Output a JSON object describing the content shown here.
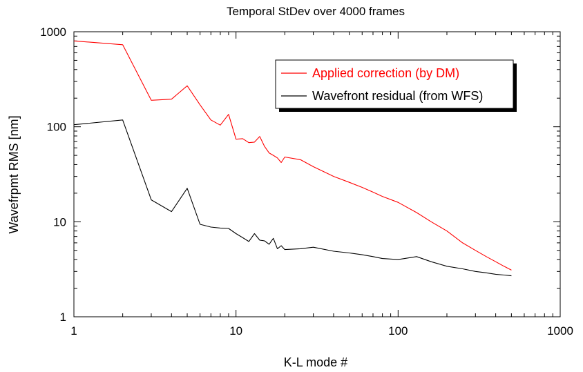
{
  "chart_data": {
    "type": "line",
    "title": "Temporal StDev over 4000 frames",
    "xlabel": "K-L mode #",
    "ylabel": "Wavefrpmt RMS [nm]",
    "xscale": "log",
    "yscale": "log",
    "xlim": [
      1,
      1000
    ],
    "ylim": [
      1,
      1000
    ],
    "xticks": [
      1,
      10,
      100,
      1000
    ],
    "xtick_labels": [
      "1",
      "10",
      "100",
      "1000"
    ],
    "yticks": [
      1,
      10,
      100,
      1000
    ],
    "ytick_labels": [
      "1",
      "10",
      "100",
      "1000"
    ],
    "grid": false,
    "legend_position": "top-right",
    "series": [
      {
        "name": "Applied correction (by DM)",
        "color": "#ff0000",
        "x": [
          1,
          2,
          3,
          4,
          5,
          6,
          7,
          8,
          9,
          10,
          11,
          12,
          13,
          14,
          15,
          16,
          17,
          18,
          19,
          20,
          25,
          30,
          40,
          50,
          60,
          70,
          80,
          100,
          130,
          160,
          200,
          250,
          300,
          350,
          400,
          450,
          500
        ],
        "y": [
          800,
          730,
          190,
          195,
          270,
          170,
          118,
          104,
          135,
          74,
          75,
          68,
          69,
          79,
          62,
          53,
          50,
          47,
          42,
          48,
          45,
          38,
          30,
          26,
          23,
          20.5,
          18.5,
          16,
          12.5,
          10,
          8,
          6,
          5,
          4.3,
          3.8,
          3.4,
          3.1
        ]
      },
      {
        "name": "Wavefront residual (from WFS)",
        "color": "#000000",
        "x": [
          1,
          2,
          3,
          4,
          5,
          6,
          7,
          8,
          9,
          10,
          11,
          12,
          13,
          14,
          15,
          16,
          17,
          18,
          19,
          20,
          25,
          30,
          40,
          50,
          60,
          70,
          80,
          100,
          130,
          160,
          200,
          250,
          300,
          350,
          400,
          450,
          500
        ],
        "y": [
          105,
          118,
          17,
          12.8,
          22.5,
          9.4,
          8.8,
          8.6,
          8.5,
          7.5,
          6.8,
          6.2,
          7.5,
          6.4,
          6.3,
          5.8,
          6.7,
          5.2,
          5.6,
          5.1,
          5.2,
          5.4,
          4.9,
          4.7,
          4.5,
          4.3,
          4.1,
          4.0,
          4.3,
          3.8,
          3.4,
          3.2,
          3.0,
          2.9,
          2.8,
          2.75,
          2.7
        ]
      }
    ]
  }
}
